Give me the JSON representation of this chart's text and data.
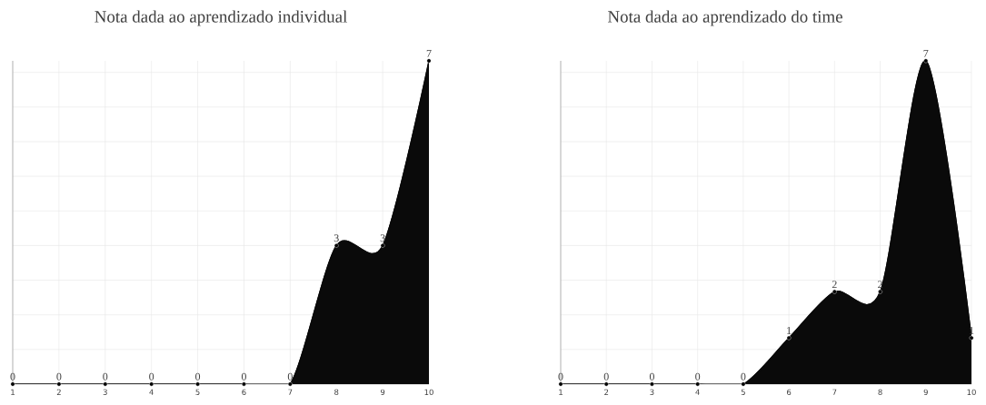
{
  "chart_data": [
    {
      "type": "area",
      "title": "Nota dada ao aprendizado individual",
      "categories": [
        "1",
        "2",
        "3",
        "4",
        "5",
        "6",
        "7",
        "8",
        "9",
        "10"
      ],
      "values": [
        0,
        0,
        0,
        0,
        0,
        0,
        0,
        3,
        3,
        7
      ],
      "color": "#0a0a0a",
      "ylim": [
        0,
        7
      ],
      "yticks": [
        {
          "value": 0.75,
          "label": null
        },
        {
          "value": 1.5,
          "label": null
        },
        {
          "value": 2.25,
          "label": null
        },
        {
          "value": 3,
          "label": null
        },
        {
          "value": 3.75,
          "label": null
        },
        {
          "value": 4.5,
          "label": null
        },
        {
          "value": 5.25,
          "label": null
        },
        {
          "value": 6,
          "label": null
        },
        {
          "value": 6.75,
          "label": null
        }
      ],
      "tick_labels": "x",
      "grid": true,
      "marker": "circle",
      "data_labels": true
    },
    {
      "type": "area",
      "title": "Nota dada ao aprendizado do time",
      "categories": [
        "1",
        "2",
        "3",
        "4",
        "5",
        "6",
        "7",
        "8",
        "9",
        "10"
      ],
      "values": [
        0,
        0,
        0,
        0,
        0,
        1,
        2,
        2,
        7,
        1
      ],
      "color": "#0a0a0a",
      "ylim": [
        0,
        7
      ],
      "yticks": [
        {
          "value": 0.75,
          "label": null
        },
        {
          "value": 1.5,
          "label": null
        },
        {
          "value": 2.25,
          "label": null
        },
        {
          "value": 3,
          "label": null
        },
        {
          "value": 3.75,
          "label": null
        },
        {
          "value": 4.5,
          "label": null
        },
        {
          "value": 5.25,
          "label": null
        },
        {
          "value": 6,
          "label": null
        },
        {
          "value": 6.75,
          "label": null
        }
      ],
      "tick_labels": "x",
      "grid": true,
      "marker": "circle",
      "data_labels": true
    }
  ]
}
